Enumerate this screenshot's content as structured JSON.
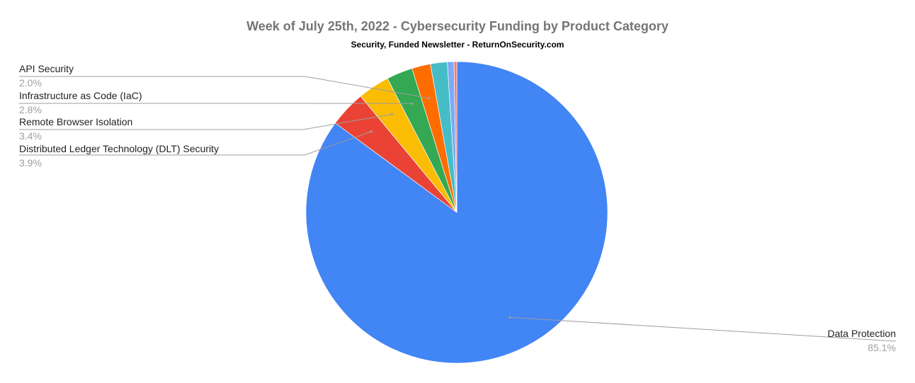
{
  "chart_data": {
    "type": "pie",
    "title": "Week of July 25th, 2022 - Cybersecurity Funding by Product Category",
    "subtitle": "Security, Funded Newsletter - ReturnOnSecurity.com",
    "slices": [
      {
        "label": "Data Protection",
        "value": 85.1,
        "pct_label": "85.1%",
        "color": "#4285F4"
      },
      {
        "label": "Distributed Ledger Technology (DLT) Security",
        "value": 3.9,
        "pct_label": "3.9%",
        "color": "#EA4335"
      },
      {
        "label": "Remote Browser Isolation",
        "value": 3.4,
        "pct_label": "3.4%",
        "color": "#FBBC04"
      },
      {
        "label": "Infrastructure as Code (IaC)",
        "value": 2.8,
        "pct_label": "2.8%",
        "color": "#34A853"
      },
      {
        "label": "API Security",
        "value": 2.0,
        "pct_label": "2.0%",
        "color": "#FF6D01"
      },
      {
        "value": 1.8,
        "color": "#46BDC6"
      },
      {
        "value": 0.7,
        "color": "#7BAAF7"
      },
      {
        "value": 0.3,
        "color": "#F07B72"
      }
    ],
    "legend": "none"
  }
}
